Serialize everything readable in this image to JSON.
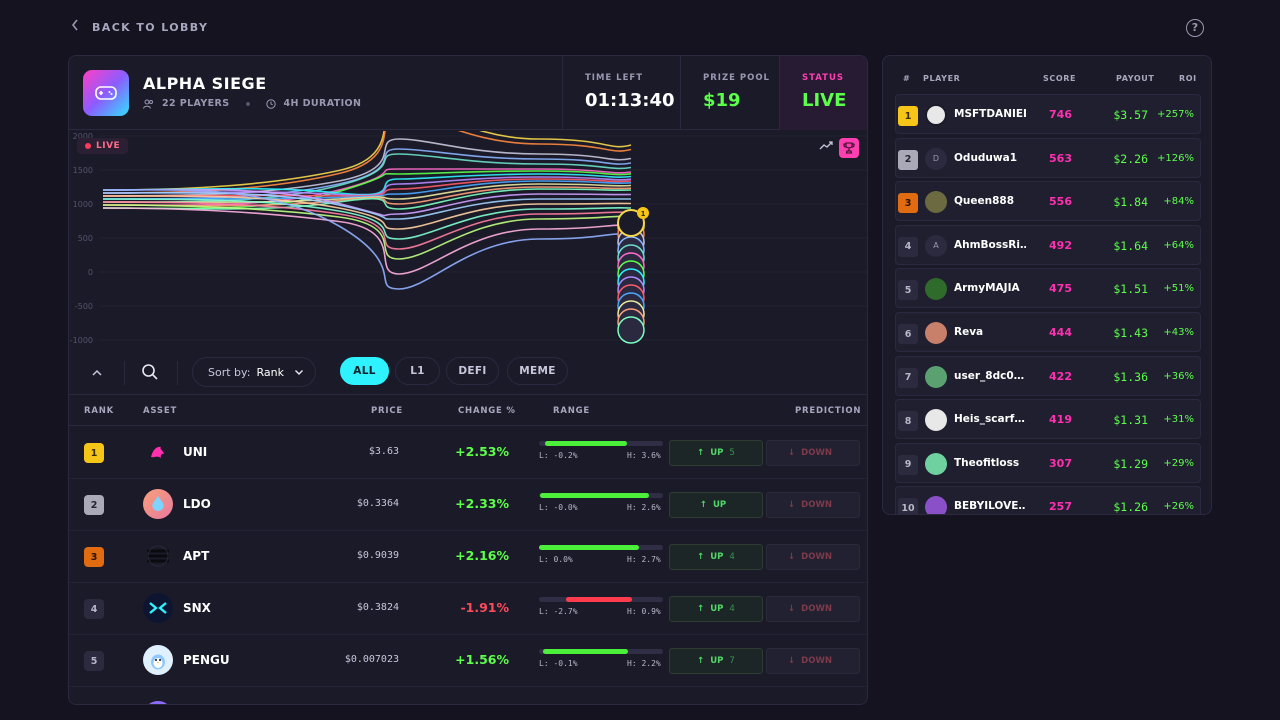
{
  "nav": {
    "back_label": "BACK TO LOBBY",
    "help_icon": "?"
  },
  "game": {
    "title": "ALPHA SIEGE",
    "players": "22 PLAYERS",
    "duration": "4H DURATION",
    "time_left_label": "TIME LEFT",
    "time_left": "01:13:40",
    "prize_pool_label": "PRIZE POOL",
    "prize_pool": "$19",
    "status_label": "STATUS",
    "status": "LIVE"
  },
  "chart": {
    "live_label": "LIVE",
    "y_ticks": [
      "2000",
      "1500",
      "1000",
      "500",
      "0",
      "-500",
      "-1000"
    ],
    "leader_badge": "1"
  },
  "filters": {
    "sort_label": "Sort by:",
    "sort_value": "Rank",
    "pills": [
      "ALL",
      "L1",
      "DEFI",
      "MEME"
    ],
    "active": "ALL"
  },
  "table": {
    "headers": {
      "rank": "RANK",
      "asset": "ASSET",
      "price": "PRICE",
      "change": "CHANGE %",
      "range": "RANGE",
      "prediction": "PREDICTION"
    },
    "up_label": "UP",
    "down_label": "DOWN",
    "rows": [
      {
        "rank": "1",
        "asset": "UNI",
        "price": "$3.63",
        "change": "+2.53%",
        "low": "L: -0.2%",
        "high": "H: 3.6%",
        "up_count": "5",
        "down_count": ""
      },
      {
        "rank": "2",
        "asset": "LDO",
        "price": "$0.3364",
        "change": "+2.33%",
        "low": "L: -0.0%",
        "high": "H: 2.6%",
        "up_count": "",
        "down_count": ""
      },
      {
        "rank": "3",
        "asset": "APT",
        "price": "$0.9039",
        "change": "+2.16%",
        "low": "L: 0.0%",
        "high": "H: 2.7%",
        "up_count": "4",
        "down_count": ""
      },
      {
        "rank": "4",
        "asset": "SNX",
        "price": "$0.3824",
        "change": "-1.91%",
        "low": "L: -2.7%",
        "high": "H: 0.9%",
        "up_count": "4",
        "down_count": ""
      },
      {
        "rank": "5",
        "asset": "PENGU",
        "price": "$0.007023",
        "change": "+1.56%",
        "low": "L: -0.1%",
        "high": "H: 2.2%",
        "up_count": "7",
        "down_count": ""
      }
    ]
  },
  "leaderboard": {
    "headers": {
      "rank": "#",
      "player": "PLAYER",
      "score": "SCORE",
      "payout": "PAYOUT",
      "roi": "ROI"
    },
    "rows": [
      {
        "rank": "1",
        "avatar": "",
        "name": "MSFTDANIEL",
        "score": "746",
        "payout": "$3.57",
        "roi": "+257%"
      },
      {
        "rank": "2",
        "avatar": "D",
        "name": "Oduduwa1",
        "score": "563",
        "payout": "$2.26",
        "roi": "+126%"
      },
      {
        "rank": "3",
        "avatar": "",
        "name": "Queen888",
        "score": "556",
        "payout": "$1.84",
        "roi": "+84%"
      },
      {
        "rank": "4",
        "avatar": "A",
        "name": "AhmBossRi…",
        "score": "492",
        "payout": "$1.64",
        "roi": "+64%"
      },
      {
        "rank": "5",
        "avatar": "",
        "name": "ArmyMAJIA",
        "score": "475",
        "payout": "$1.51",
        "roi": "+51%"
      },
      {
        "rank": "6",
        "avatar": "",
        "name": "Reva",
        "score": "444",
        "payout": "$1.43",
        "roi": "+43%"
      },
      {
        "rank": "7",
        "avatar": "",
        "name": "user_8dc0…",
        "score": "422",
        "payout": "$1.36",
        "roi": "+36%"
      },
      {
        "rank": "8",
        "avatar": "",
        "name": "Heis_scarf…",
        "score": "419",
        "payout": "$1.31",
        "roi": "+31%"
      },
      {
        "rank": "9",
        "avatar": "",
        "name": "Theofitloss",
        "score": "307",
        "payout": "$1.29",
        "roi": "+29%"
      },
      {
        "rank": "10",
        "avatar": "",
        "name": "BEBYILOVE…",
        "score": "257",
        "payout": "$1.26",
        "roi": "+26%"
      }
    ]
  },
  "colors": {
    "accent_cyan": "#2ef2ff",
    "accent_pink": "#ff2fb0",
    "positive": "#5cff4a",
    "negative": "#ff4a5c"
  }
}
